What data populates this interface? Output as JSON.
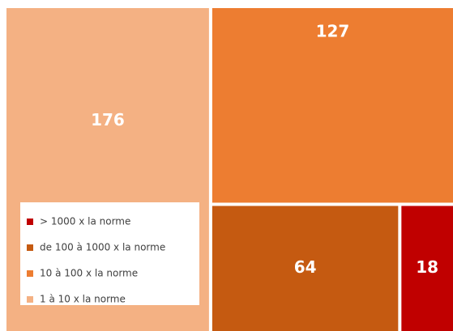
{
  "chart_data": {
    "type": "treemap",
    "categories": [
      "1 à 10 x la norme",
      "10 à 100 x la norme",
      "de 100 à 1000 x la norme",
      "> 1000 x la norme"
    ],
    "values": [
      176,
      127,
      64,
      18
    ],
    "colors": [
      "#f4b183",
      "#ed7d31",
      "#c55a11",
      "#c00000"
    ],
    "legend": "bottom-left"
  }
}
